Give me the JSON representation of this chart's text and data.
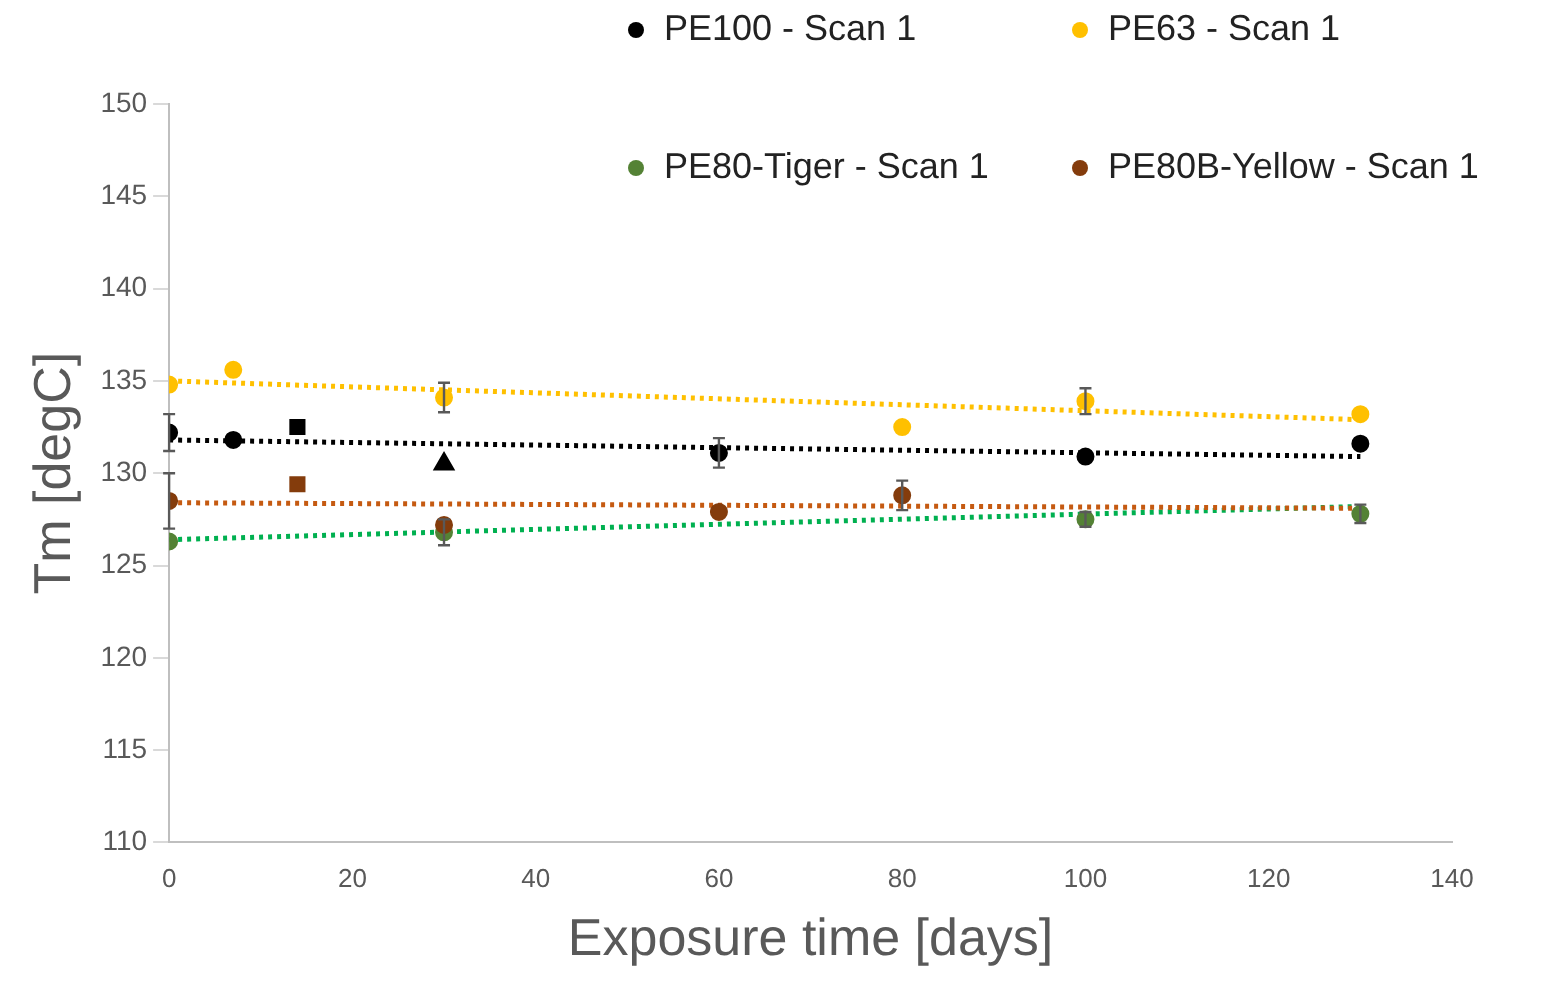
{
  "chart_data": {
    "type": "scatter",
    "xlabel": "Exposure time [days]",
    "ylabel": "Tm [degC]",
    "xlim": [
      0,
      140
    ],
    "xticks": [
      0,
      20,
      40,
      60,
      80,
      100,
      120,
      140
    ],
    "ylim": [
      110,
      150
    ],
    "yticks": [
      110,
      115,
      120,
      125,
      130,
      135,
      140,
      145,
      150
    ],
    "grid": false,
    "legend": "top right",
    "marker": "circle",
    "series": [
      {
        "name": "PE100 - Scan 1",
        "color": "#000000",
        "x": [
          0,
          7,
          60,
          100,
          130
        ],
        "values": [
          132.2,
          131.8,
          131.1,
          130.9,
          131.6
        ],
        "errors": [
          1.0,
          null,
          0.8,
          null,
          null
        ]
      },
      {
        "name": "PE63 - Scan 1",
        "color": "#ffc000",
        "x": [
          0,
          7,
          30,
          80,
          100,
          130
        ],
        "values": [
          134.8,
          135.6,
          134.1,
          132.5,
          133.9,
          133.2
        ],
        "errors": [
          null,
          null,
          0.8,
          null,
          0.7,
          null
        ]
      },
      {
        "name": "PE80-Tiger - Scan 1",
        "color": "#548235",
        "x": [
          0,
          30,
          100,
          130
        ],
        "values": [
          126.3,
          126.8,
          127.5,
          127.8
        ],
        "errors": [
          null,
          0.7,
          0.4,
          0.5
        ]
      },
      {
        "name": "PE80B-Yellow - Scan 1",
        "color": "#843c0c",
        "x": [
          0,
          30,
          60,
          80
        ],
        "values": [
          128.5,
          127.2,
          127.9,
          128.8
        ],
        "errors": [
          1.5,
          null,
          null,
          0.8
        ]
      },
      {
        "color": "#000000",
        "marker": "square",
        "x": [
          14
        ],
        "values": [
          132.5
        ]
      },
      {
        "color": "#843c0c",
        "marker": "square",
        "x": [
          14
        ],
        "values": [
          129.4
        ]
      },
      {
        "color": "#000000",
        "marker": "triangle",
        "x": [
          30
        ],
        "values": [
          130.5
        ]
      },
      {
        "type": "line",
        "color": "#000000",
        "line_style": "dotted",
        "marker": "none",
        "x": [
          0,
          130
        ],
        "values": [
          131.8,
          130.9
        ]
      },
      {
        "type": "line",
        "color": "#ffc000",
        "line_style": "dotted",
        "marker": "none",
        "x": [
          0,
          130
        ],
        "values": [
          135.0,
          132.9
        ]
      },
      {
        "type": "line",
        "color": "#00b050",
        "line_style": "dotted",
        "marker": "none",
        "x": [
          0,
          130
        ],
        "values": [
          126.4,
          128.2
        ]
      },
      {
        "type": "line",
        "color": "#c55a11",
        "line_style": "dotted",
        "marker": "none",
        "x": [
          0,
          130
        ],
        "values": [
          128.4,
          128.1
        ]
      }
    ]
  }
}
